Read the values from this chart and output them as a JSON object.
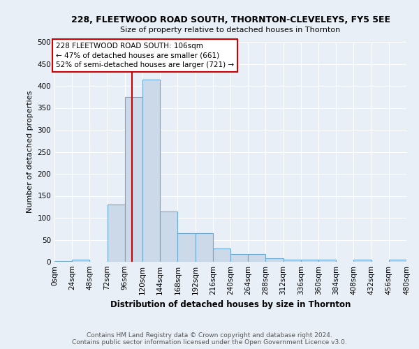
{
  "title1": "228, FLEETWOOD ROAD SOUTH, THORNTON-CLEVELEYS, FY5 5EE",
  "title2": "Size of property relative to detached houses in Thornton",
  "xlabel": "Distribution of detached houses by size in Thornton",
  "ylabel": "Number of detached properties",
  "footer1": "Contains HM Land Registry data © Crown copyright and database right 2024.",
  "footer2": "Contains public sector information licensed under the Open Government Licence v3.0.",
  "bin_edges": [
    0,
    24,
    48,
    72,
    96,
    120,
    144,
    168,
    192,
    216,
    240,
    264,
    288,
    312,
    336,
    360,
    384,
    408,
    432,
    456,
    480
  ],
  "bar_heights": [
    2,
    4,
    0,
    130,
    375,
    415,
    115,
    65,
    65,
    30,
    17,
    17,
    8,
    5,
    4,
    4,
    0,
    4,
    0,
    4
  ],
  "bar_color": "#ccd9e8",
  "bar_edge_color": "#6aaad4",
  "property_size": 106,
  "vline_color": "#cc0000",
  "annotation_text": "228 FLEETWOOD ROAD SOUTH: 106sqm\n← 47% of detached houses are smaller (661)\n52% of semi-detached houses are larger (721) →",
  "annotation_box_color": "white",
  "annotation_box_edge": "#cc0000",
  "ylim": [
    0,
    500
  ],
  "background_color": "#e8eff7",
  "plot_bg_color": "#e8eff7",
  "grid_color": "white",
  "title1_fontsize": 9,
  "title2_fontsize": 8,
  "ylabel_fontsize": 8,
  "xlabel_fontsize": 8.5,
  "tick_fontsize": 7.5,
  "footer_fontsize": 6.5
}
